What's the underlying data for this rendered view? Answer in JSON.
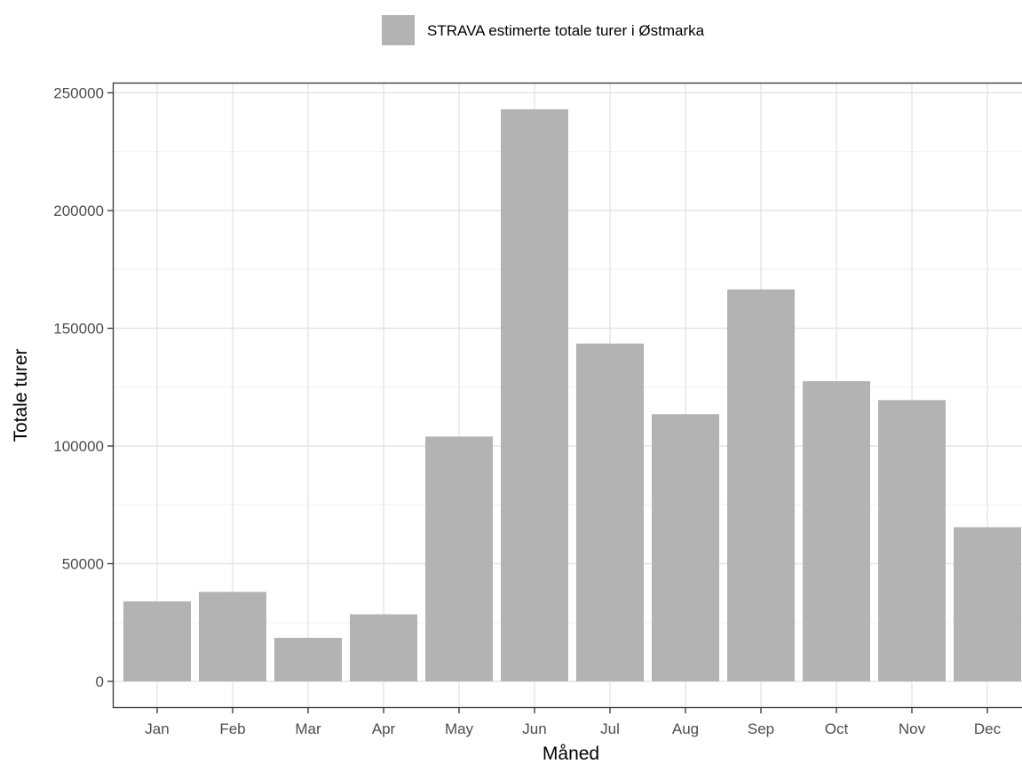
{
  "chart_data": {
    "type": "bar",
    "title": "",
    "xlabel": "Måned",
    "ylabel": "Totale turer",
    "categories": [
      "Jan",
      "Feb",
      "Mar",
      "Apr",
      "May",
      "Jun",
      "Jul",
      "Aug",
      "Sep",
      "Oct",
      "Nov",
      "Dec"
    ],
    "series": [
      {
        "name": "STRAVA estimerte totale turer i Østmarka",
        "color": "#b3b3b3",
        "values": [
          34000,
          38000,
          18500,
          28500,
          104000,
          243000,
          143500,
          113500,
          166500,
          127500,
          119500,
          65500
        ]
      }
    ],
    "ylim": [
      -12500,
      250000
    ],
    "yticks": [
      0,
      50000,
      100000,
      150000,
      200000,
      250000
    ],
    "ytick_labels": [
      "0",
      "50000",
      "100000",
      "150000",
      "200000",
      "250000"
    ],
    "grid": true,
    "legend": {
      "position": "top",
      "label": "STRAVA estimerte totale turer i Østmarka"
    }
  }
}
